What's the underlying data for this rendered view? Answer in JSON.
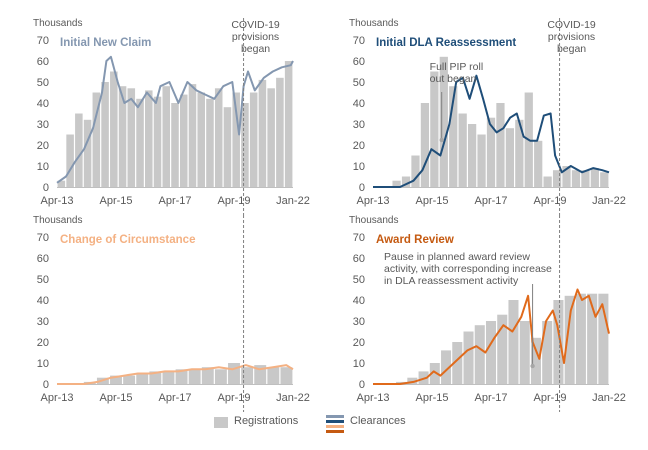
{
  "chart_data": [
    {
      "type": "bar",
      "title": "Initial New Claim",
      "title_color": "#8497b0",
      "line_color": "#8497b0",
      "unit_label": "Thousands",
      "ylim": [
        0,
        70
      ],
      "yticks": [
        0,
        10,
        20,
        30,
        40,
        50,
        60,
        70
      ],
      "xticks": [
        "Apr-13",
        "Apr-15",
        "Apr-17",
        "Apr-19",
        "Jan-22"
      ],
      "xrange": [
        "2013-04",
        "2022-01"
      ],
      "annotations": [
        {
          "text_lines": [
            "COVID-19",
            "provisions",
            "began"
          ],
          "date": "2020-03",
          "type": "vline"
        }
      ],
      "series": [
        {
          "name": "Registrations",
          "kind": "bar",
          "dates": [
            "2013-04",
            "2013-08",
            "2013-12",
            "2014-04",
            "2014-08",
            "2014-12",
            "2015-04",
            "2015-08",
            "2015-12",
            "2016-04",
            "2016-08",
            "2016-12",
            "2017-04",
            "2017-08",
            "2017-12",
            "2018-04",
            "2018-08",
            "2018-12",
            "2019-04",
            "2019-08",
            "2019-12",
            "2020-04",
            "2020-08",
            "2020-12",
            "2021-04",
            "2021-08",
            "2022-01"
          ],
          "values": [
            3,
            25,
            35,
            32,
            45,
            50,
            55,
            48,
            47,
            42,
            46,
            43,
            48,
            40,
            44,
            49,
            45,
            42,
            47,
            38,
            45,
            40,
            45,
            51,
            47,
            52,
            60
          ]
        },
        {
          "name": "Clearances",
          "kind": "line",
          "dates": [
            "2013-04",
            "2013-08",
            "2013-12",
            "2014-04",
            "2014-08",
            "2014-12",
            "2015-02",
            "2015-04",
            "2015-07",
            "2015-10",
            "2016-01",
            "2016-04",
            "2016-08",
            "2016-12",
            "2017-02",
            "2017-06",
            "2017-10",
            "2018-02",
            "2018-06",
            "2018-10",
            "2019-02",
            "2019-06",
            "2019-10",
            "2020-01",
            "2020-03",
            "2020-05",
            "2020-08",
            "2020-12",
            "2021-04",
            "2021-08",
            "2021-12",
            "2022-01"
          ],
          "values": [
            2,
            5,
            12,
            18,
            28,
            45,
            60,
            62,
            50,
            40,
            42,
            38,
            45,
            40,
            48,
            50,
            40,
            50,
            46,
            44,
            42,
            48,
            50,
            25,
            48,
            55,
            46,
            52,
            55,
            57,
            58,
            60
          ]
        }
      ]
    },
    {
      "type": "bar",
      "title": "Initial DLA Reassessment",
      "title_color": "#1f4e79",
      "line_color": "#1f4e79",
      "unit_label": "Thousands",
      "ylim": [
        0,
        70
      ],
      "yticks": [
        0,
        10,
        20,
        30,
        40,
        50,
        60,
        70
      ],
      "xticks": [
        "Apr-13",
        "Apr-15",
        "Apr-17",
        "Apr-19",
        "Jan-22"
      ],
      "xrange": [
        "2013-04",
        "2022-01"
      ],
      "annotations": [
        {
          "text_lines": [
            "COVID-19",
            "provisions",
            "began"
          ],
          "date": "2020-03",
          "type": "vline"
        },
        {
          "text_lines": [
            "Full PIP roll",
            "out began"
          ],
          "date": "2015-07",
          "type": "pin"
        }
      ],
      "series": [
        {
          "name": "Registrations",
          "kind": "bar",
          "dates": [
            "2013-04",
            "2013-10",
            "2014-04",
            "2014-10",
            "2015-04",
            "2015-10",
            "2016-02",
            "2016-06",
            "2016-10",
            "2017-02",
            "2017-06",
            "2017-10",
            "2018-02",
            "2018-06",
            "2018-10",
            "2019-02",
            "2019-06",
            "2019-10",
            "2020-02",
            "2020-06",
            "2020-10",
            "2021-02",
            "2021-06",
            "2021-10",
            "2022-01"
          ],
          "values": [
            0,
            0,
            3,
            5,
            15,
            40,
            55,
            62,
            48,
            35,
            30,
            25,
            33,
            40,
            28,
            32,
            45,
            22,
            5,
            8,
            10,
            8,
            8,
            9,
            7
          ]
        },
        {
          "name": "Clearances",
          "kind": "line",
          "dates": [
            "2013-04",
            "2014-04",
            "2014-10",
            "2015-02",
            "2015-06",
            "2015-10",
            "2016-02",
            "2016-05",
            "2016-08",
            "2016-11",
            "2017-02",
            "2017-05",
            "2017-08",
            "2017-11",
            "2018-02",
            "2018-05",
            "2018-08",
            "2018-11",
            "2019-02",
            "2019-05",
            "2019-08",
            "2019-11",
            "2020-01",
            "2020-04",
            "2020-08",
            "2021-01",
            "2021-06",
            "2021-10",
            "2022-01"
          ],
          "values": [
            0,
            0,
            3,
            8,
            18,
            15,
            30,
            50,
            52,
            42,
            53,
            42,
            30,
            26,
            28,
            33,
            35,
            24,
            22,
            22,
            34,
            35,
            15,
            7,
            10,
            7,
            9,
            8,
            7
          ]
        }
      ]
    },
    {
      "type": "bar",
      "title": "Change of Circumstance",
      "title_color": "#f4b183",
      "line_color": "#f4b183",
      "unit_label": "Thousands",
      "ylim": [
        0,
        70
      ],
      "yticks": [
        0,
        10,
        20,
        30,
        40,
        50,
        60,
        70
      ],
      "xticks": [
        "Apr-13",
        "Apr-15",
        "Apr-17",
        "Apr-19",
        "Jan-22"
      ],
      "xrange": [
        "2013-04",
        "2022-01"
      ],
      "annotations": [
        {
          "date": "2020-03",
          "type": "vline"
        }
      ],
      "series": [
        {
          "name": "Registrations",
          "kind": "bar",
          "dates": [
            "2013-04",
            "2014-04",
            "2014-10",
            "2015-04",
            "2015-10",
            "2016-04",
            "2016-10",
            "2017-04",
            "2017-10",
            "2018-04",
            "2018-10",
            "2019-04",
            "2019-10",
            "2020-04",
            "2020-10",
            "2021-04",
            "2021-10",
            "2022-01"
          ],
          "values": [
            0,
            0,
            1,
            3,
            4,
            4,
            5,
            6,
            6,
            7,
            7,
            8,
            7,
            10,
            8,
            9,
            8,
            8
          ]
        },
        {
          "name": "Clearances",
          "kind": "line",
          "dates": [
            "2013-04",
            "2014-04",
            "2014-10",
            "2015-04",
            "2015-10",
            "2016-04",
            "2016-10",
            "2017-04",
            "2017-10",
            "2018-04",
            "2018-10",
            "2019-04",
            "2019-10",
            "2020-04",
            "2020-10",
            "2021-04",
            "2021-10",
            "2022-01"
          ],
          "values": [
            0,
            0,
            1,
            3,
            4,
            5,
            5,
            6,
            6,
            7,
            7,
            8,
            7,
            9,
            7,
            8,
            9,
            7
          ]
        }
      ]
    },
    {
      "type": "bar",
      "title": "Award Review",
      "title_color": "#c55a11",
      "line_color": "#e06a1b",
      "unit_label": "Thousands",
      "ylim": [
        0,
        70
      ],
      "yticks": [
        0,
        10,
        20,
        30,
        40,
        50,
        60,
        70
      ],
      "xticks": [
        "Apr-13",
        "Apr-15",
        "Apr-17",
        "Apr-19",
        "Jan-22"
      ],
      "xrange": [
        "2013-04",
        "2022-01"
      ],
      "annotations": [
        {
          "date": "2020-03",
          "type": "vline"
        },
        {
          "text_lines": [
            "Pause in planned award review",
            "activity, with corresponding increase",
            "in DLA reassessment activity"
          ],
          "date": "2019-03",
          "type": "pin"
        }
      ],
      "series": [
        {
          "name": "Registrations",
          "kind": "bar",
          "dates": [
            "2013-04",
            "2014-04",
            "2014-10",
            "2015-04",
            "2015-10",
            "2016-04",
            "2016-10",
            "2017-04",
            "2017-10",
            "2018-04",
            "2018-10",
            "2019-02",
            "2019-06",
            "2019-10",
            "2020-02",
            "2020-06",
            "2020-10",
            "2021-02",
            "2021-06",
            "2021-10",
            "2022-01"
          ],
          "values": [
            0,
            0,
            1,
            3,
            6,
            10,
            16,
            20,
            25,
            28,
            30,
            33,
            40,
            30,
            22,
            30,
            40,
            42,
            43,
            43,
            43
          ]
        },
        {
          "name": "Clearances",
          "kind": "line",
          "dates": [
            "2013-04",
            "2014-04",
            "2014-10",
            "2015-04",
            "2015-07",
            "2015-10",
            "2016-04",
            "2016-10",
            "2017-02",
            "2017-06",
            "2017-10",
            "2018-02",
            "2018-06",
            "2018-10",
            "2019-01",
            "2019-03",
            "2019-06",
            "2019-09",
            "2019-12",
            "2020-02",
            "2020-05",
            "2020-08",
            "2020-11",
            "2021-01",
            "2021-04",
            "2021-07",
            "2021-10",
            "2022-01"
          ],
          "values": [
            0,
            0,
            1,
            3,
            6,
            4,
            10,
            16,
            18,
            15,
            22,
            28,
            25,
            32,
            42,
            20,
            12,
            30,
            35,
            28,
            10,
            35,
            45,
            40,
            42,
            32,
            38,
            24
          ]
        }
      ]
    }
  ],
  "legend": {
    "registrations_label": "Registrations",
    "clearances_label": "Clearances",
    "clearance_colors": [
      "#8497b0",
      "#1f4e79",
      "#f4b183",
      "#c55a11"
    ],
    "registration_color": "#c8c8c8"
  }
}
